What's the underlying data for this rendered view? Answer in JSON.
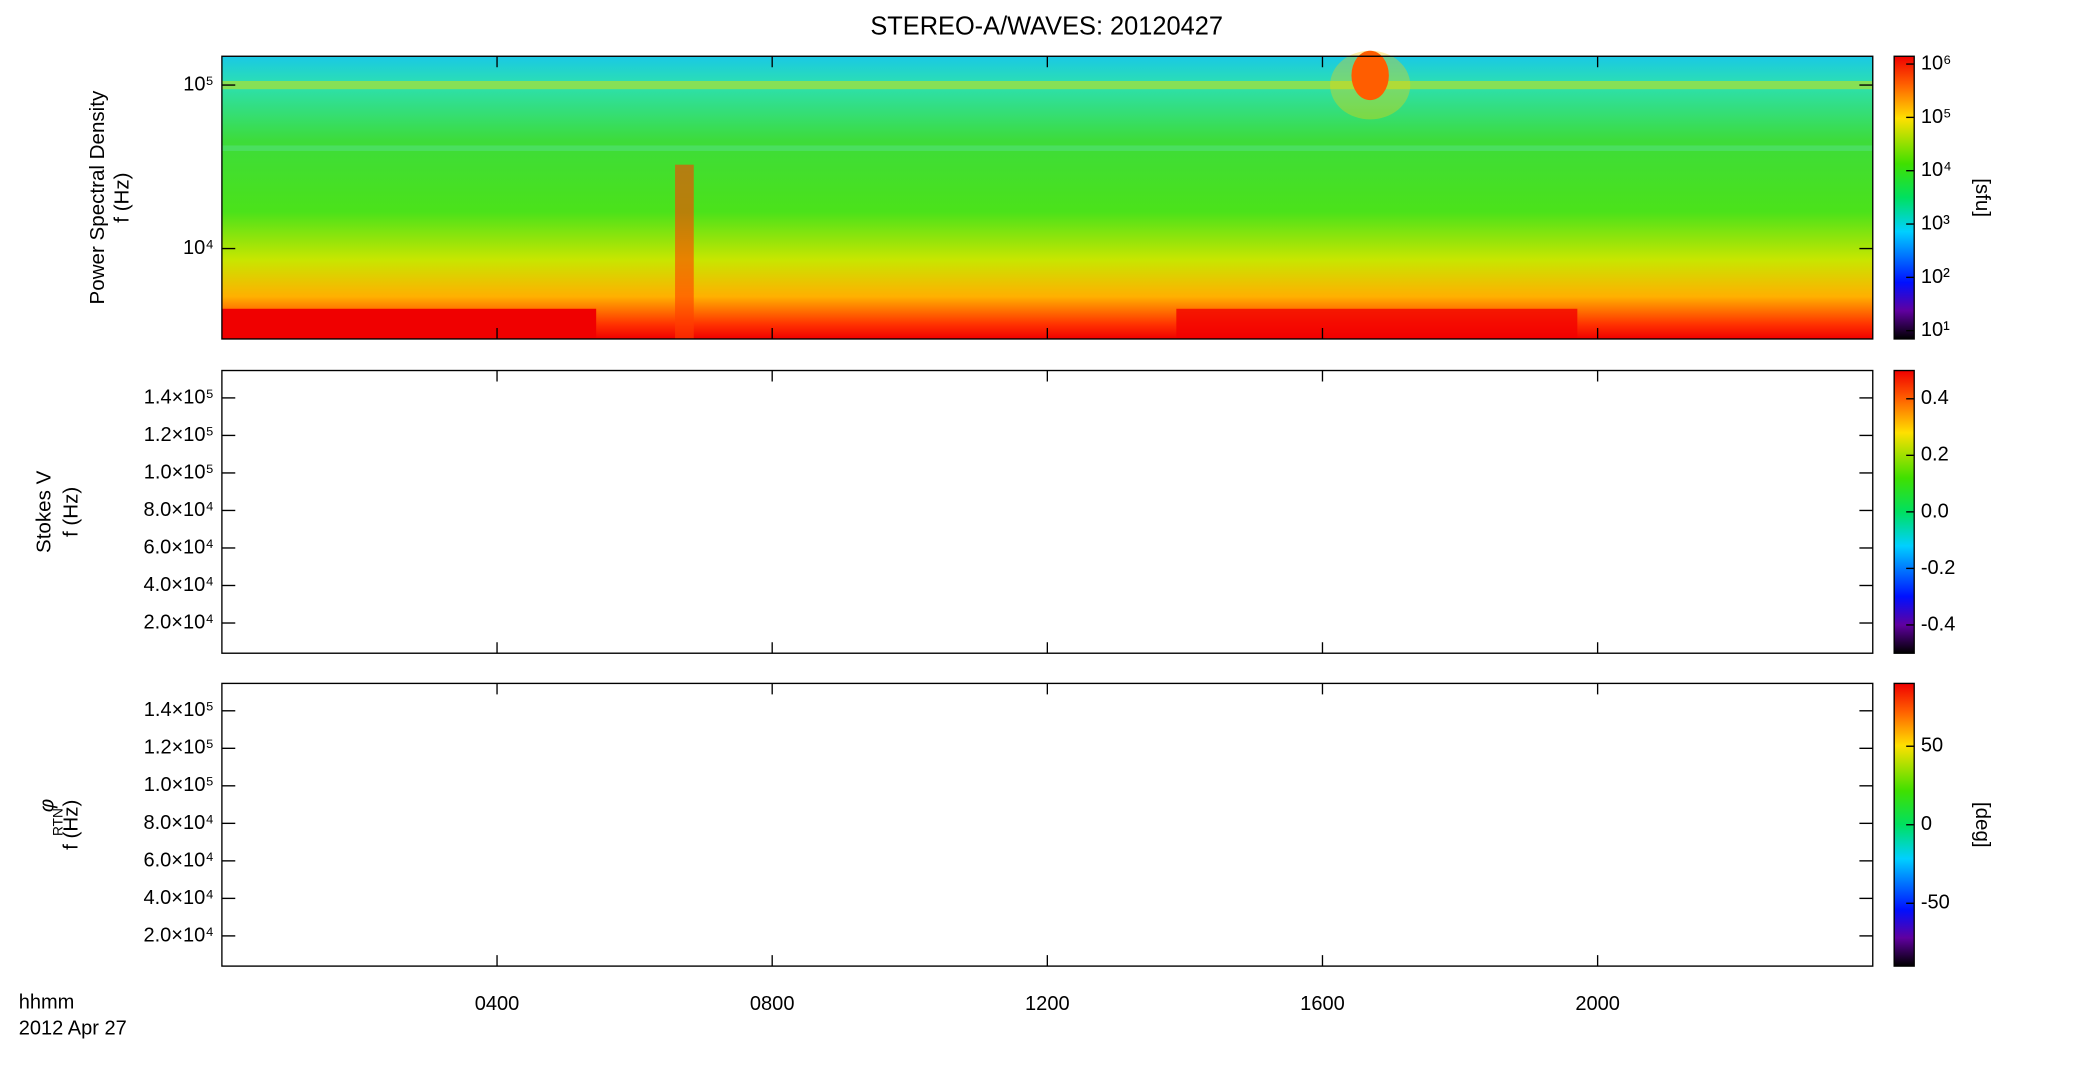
{
  "chart_data": [
    {
      "type": "heatmap",
      "title": "STEREO-A/WAVES: 20120427",
      "ylabel": "Power Spectral Density",
      "ylabel2": "f (Hz)",
      "log_y": true,
      "xlim": [
        0,
        24
      ],
      "ylim": [
        2800,
        150000
      ],
      "yticks": [
        {
          "value": 10000,
          "label": "10⁴"
        },
        {
          "value": 100000,
          "label": "10⁵"
        }
      ],
      "colorbar": {
        "log": true,
        "clim": [
          7,
          1400000
        ],
        "label": "[sfu]",
        "ticks": [
          {
            "value": 10,
            "label": "10¹"
          },
          {
            "value": 100,
            "label": "10²"
          },
          {
            "value": 1000,
            "label": "10³"
          },
          {
            "value": 10000,
            "label": "10⁴"
          },
          {
            "value": 100000,
            "label": "10⁵"
          },
          {
            "value": 1000000,
            "label": "10⁶"
          }
        ]
      }
    },
    {
      "type": "heatmap",
      "ylabel": "Stokes V",
      "ylabel2": "f (Hz)",
      "log_y": false,
      "xlim": [
        0,
        24
      ],
      "ylim": [
        3900,
        154600
      ],
      "yticks": [
        {
          "value": 20000,
          "label": "2.0×10⁴"
        },
        {
          "value": 40000,
          "label": "4.0×10⁴"
        },
        {
          "value": 60000,
          "label": "6.0×10⁴"
        },
        {
          "value": 80000,
          "label": "8.0×10⁴"
        },
        {
          "value": 100000,
          "label": "1.0×10⁵"
        },
        {
          "value": 120000,
          "label": "1.2×10⁵"
        },
        {
          "value": 140000,
          "label": "1.4×10⁵"
        }
      ],
      "colorbar": {
        "log": false,
        "clim": [
          -0.5,
          0.5
        ],
        "ticks": [
          {
            "value": -0.4,
            "label": "-0.4"
          },
          {
            "value": -0.2,
            "label": "-0.2"
          },
          {
            "value": 0,
            "label": "0.0"
          },
          {
            "value": 0.2,
            "label": "0.2"
          },
          {
            "value": 0.4,
            "label": "0.4"
          }
        ]
      }
    },
    {
      "type": "heatmap",
      "ylabel": "φ",
      "ylabel_sub": "RTN",
      "ylabel2": "f (Hz)",
      "log_y": false,
      "xlim": [
        0,
        24
      ],
      "ylim": [
        3900,
        154600
      ],
      "yticks": [
        {
          "value": 20000,
          "label": "2.0×10⁴"
        },
        {
          "value": 40000,
          "label": "4.0×10⁴"
        },
        {
          "value": 60000,
          "label": "6.0×10⁴"
        },
        {
          "value": 80000,
          "label": "8.0×10⁴"
        },
        {
          "value": 100000,
          "label": "1.0×10⁵"
        },
        {
          "value": 120000,
          "label": "1.2×10⁵"
        },
        {
          "value": 140000,
          "label": "1.4×10⁵"
        }
      ],
      "colorbar": {
        "log": false,
        "clim": [
          -90,
          90
        ],
        "label": "[deg]",
        "ticks": [
          -50,
          0,
          50
        ]
      },
      "xlabel": "hhmm",
      "xsublabel": "2012 Apr 27",
      "xticks": [
        {
          "value": 4,
          "label": "0400"
        },
        {
          "value": 8,
          "label": "0800"
        },
        {
          "value": 12,
          "label": "1200"
        },
        {
          "value": 16,
          "label": "1600"
        },
        {
          "value": 20,
          "label": "2000"
        }
      ]
    }
  ]
}
